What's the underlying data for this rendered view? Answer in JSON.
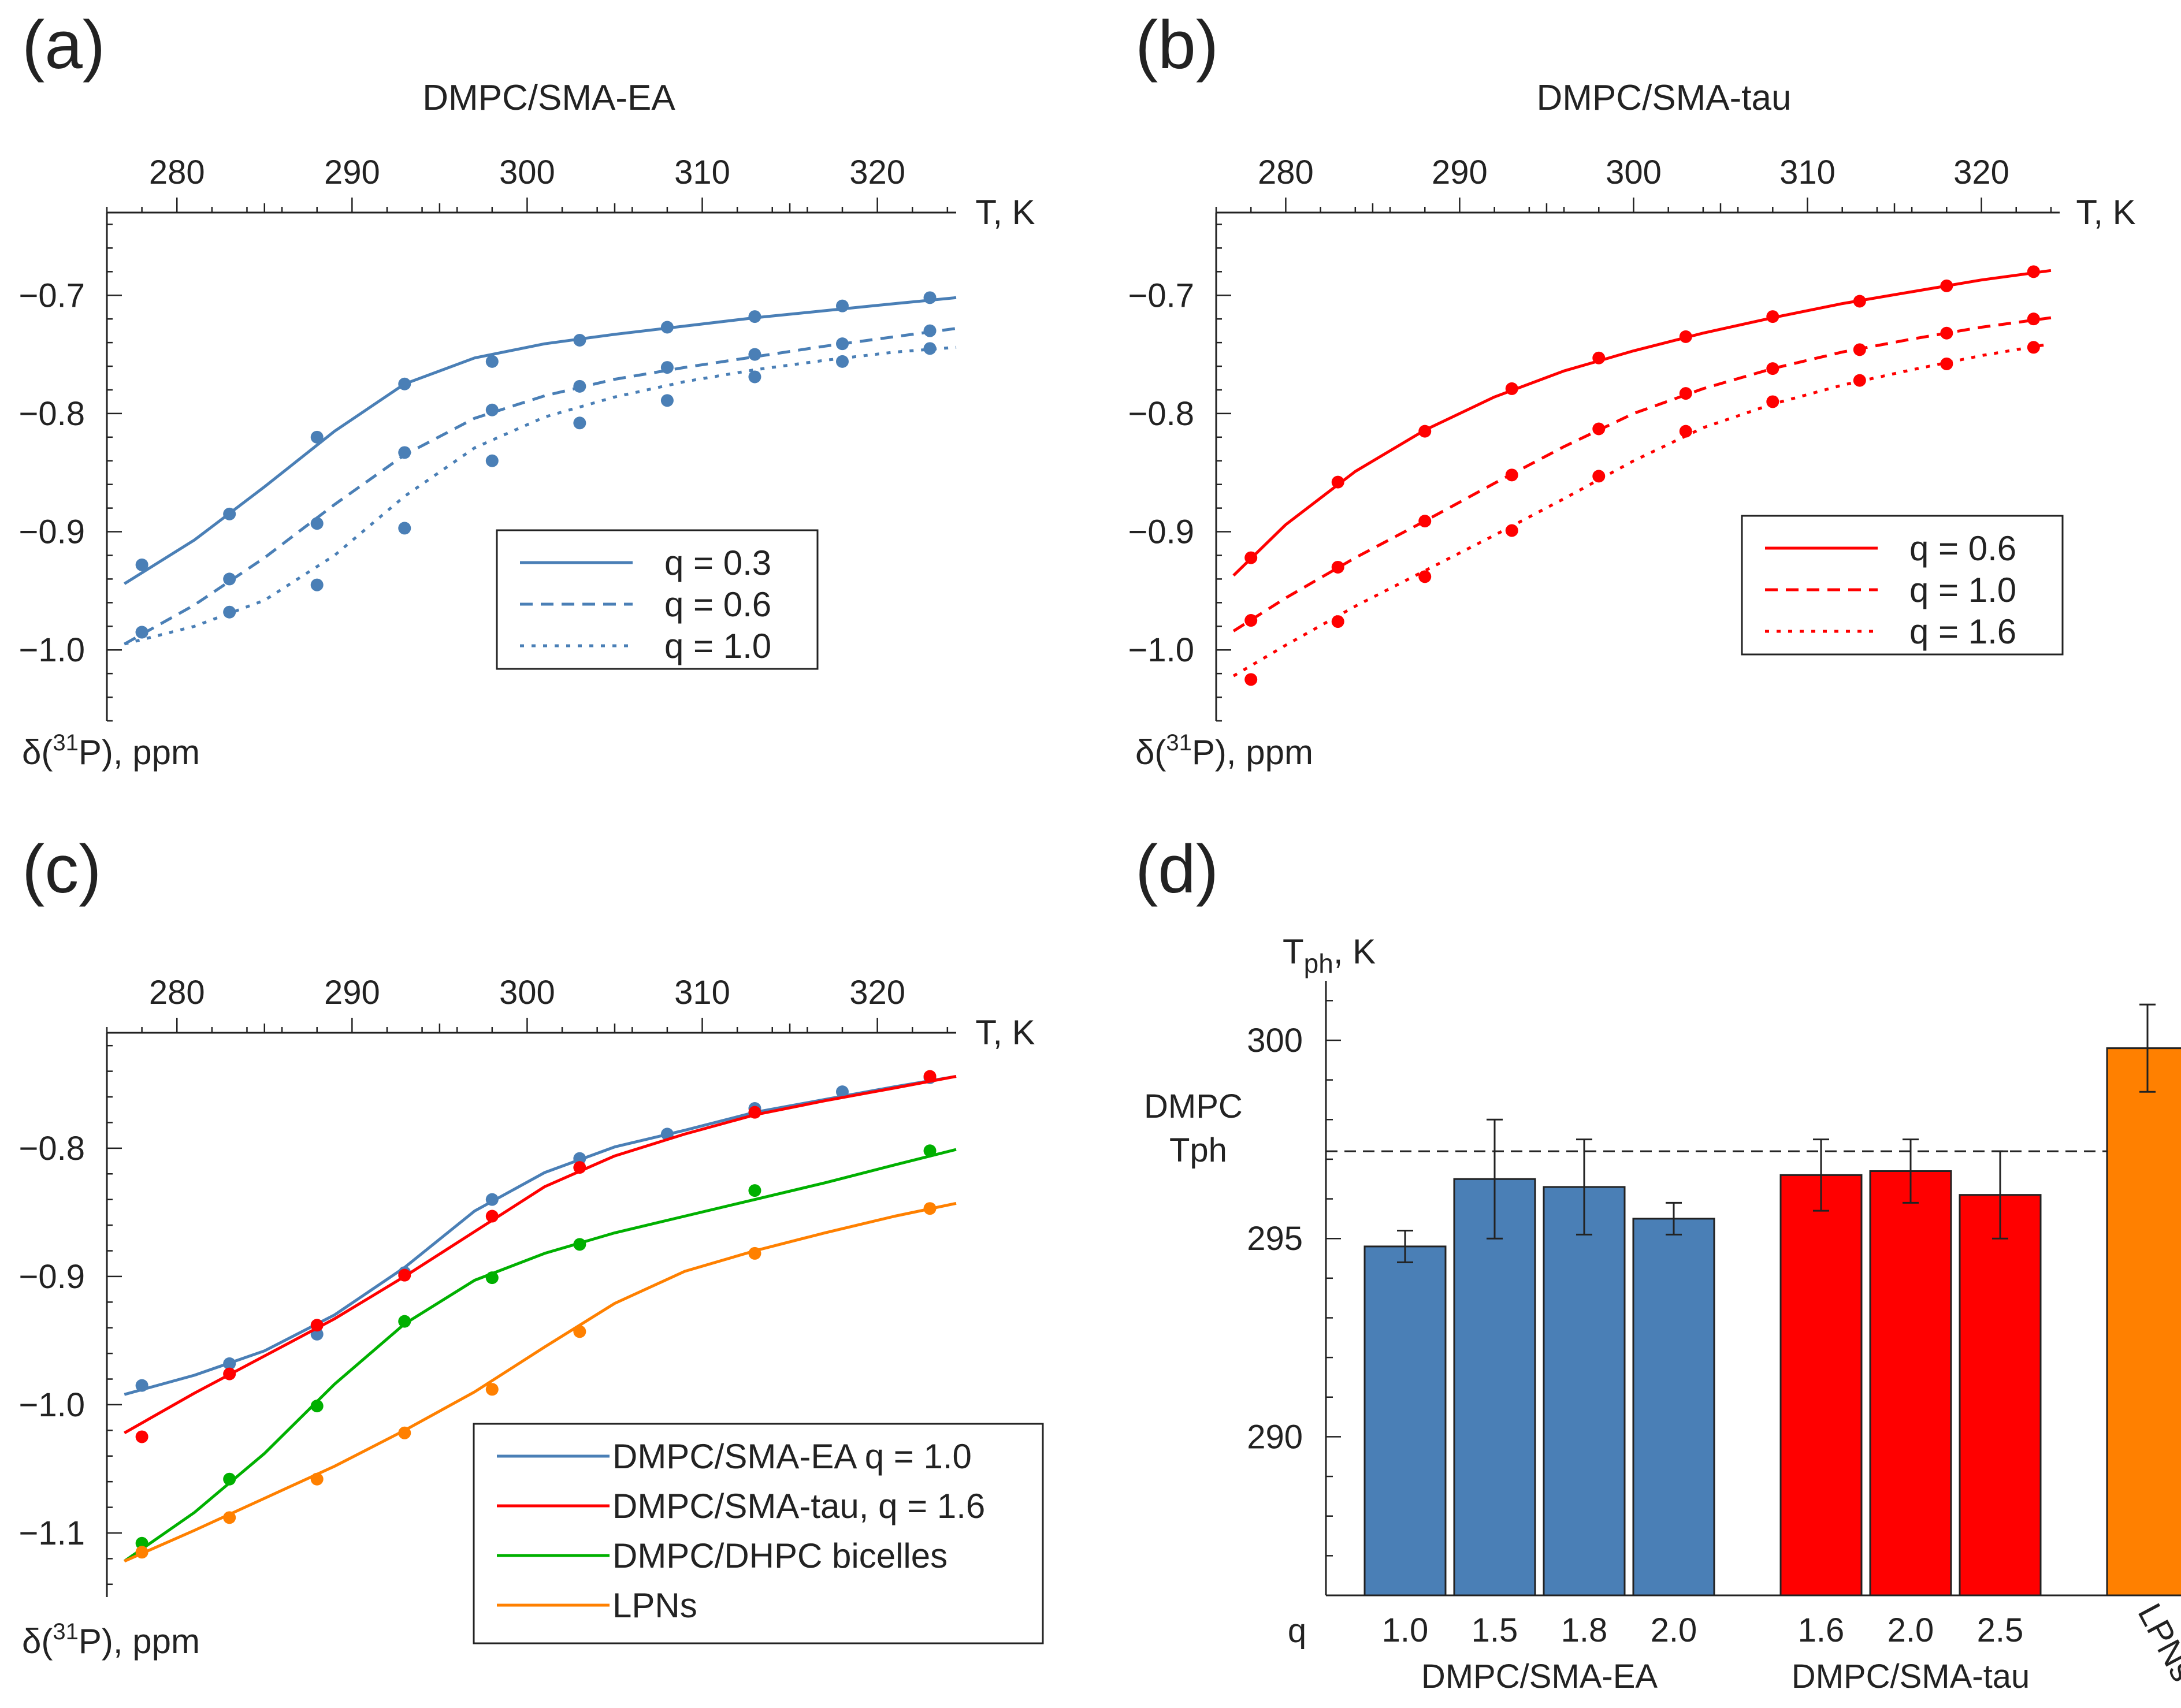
{
  "figure": {
    "colors": {
      "blue": "#4a7fb6",
      "red": "#ff0000",
      "green": "#00b000",
      "orange": "#ff8000",
      "axis": "#222222"
    }
  },
  "chart_data": [
    {
      "id": "a",
      "panel_label": "(a)",
      "type": "scatter",
      "title": "DMPC/SMA-EA",
      "xlabel": "T, K",
      "ylabel": "δ(31P), ppm",
      "ylabel_parts": {
        "pre": "δ(",
        "sup": "31",
        "post": "P), ppm"
      },
      "xlim": [
        276,
        324.5
      ],
      "ylim": [
        -1.06,
        -0.63
      ],
      "xticks": [
        280,
        290,
        300,
        310,
        320
      ],
      "xtick_labels": [
        "280",
        "290",
        "300",
        "310",
        "320"
      ],
      "yticks": [
        -1.0,
        -0.9,
        -0.8,
        -0.7
      ],
      "ytick_labels": [
        "−1.0",
        "−0.9",
        "−0.8",
        "−0.7"
      ],
      "legend_position": "center-right",
      "series": [
        {
          "name": "q = 0.3",
          "color": "#4a7fb6",
          "dash": "solid",
          "x": [
            278,
            283,
            288,
            293,
            298,
            303,
            308,
            313,
            318,
            323
          ],
          "y": [
            -0.928,
            -0.885,
            -0.82,
            -0.775,
            -0.756,
            -0.738,
            -0.727,
            -0.718,
            -0.709,
            -0.702
          ],
          "fit_x": [
            277,
            281,
            285,
            289,
            293,
            297,
            301,
            305,
            309,
            313,
            317,
            321,
            324.5
          ],
          "fit_y": [
            -0.944,
            -0.907,
            -0.862,
            -0.815,
            -0.775,
            -0.753,
            -0.741,
            -0.733,
            -0.726,
            -0.719,
            -0.713,
            -0.707,
            -0.702
          ]
        },
        {
          "name": "q = 0.6",
          "color": "#4a7fb6",
          "dash": "dashed",
          "x": [
            278,
            283,
            288,
            293,
            298,
            303,
            308,
            313,
            318,
            323
          ],
          "y": [
            -0.985,
            -0.94,
            -0.893,
            -0.833,
            -0.797,
            -0.777,
            -0.761,
            -0.75,
            -0.741,
            -0.73
          ],
          "fit_x": [
            277,
            281,
            285,
            289,
            293,
            297,
            301,
            305,
            309,
            313,
            317,
            321,
            324.5
          ],
          "fit_y": [
            -0.995,
            -0.962,
            -0.922,
            -0.877,
            -0.835,
            -0.804,
            -0.785,
            -0.771,
            -0.761,
            -0.752,
            -0.743,
            -0.735,
            -0.728
          ]
        },
        {
          "name": "q = 1.0",
          "color": "#4a7fb6",
          "dash": "dotted",
          "x": [
            278,
            283,
            288,
            293,
            298,
            303,
            308,
            313,
            318,
            323
          ],
          "y": [
            -0.985,
            -0.968,
            -0.945,
            -0.897,
            -0.84,
            -0.808,
            -0.789,
            -0.769,
            -0.756,
            -0.745
          ],
          "fit_x": [
            277,
            281,
            285,
            289,
            293,
            297,
            301,
            305,
            309,
            313,
            317,
            321,
            324.5
          ],
          "fit_y": [
            -0.995,
            -0.98,
            -0.958,
            -0.92,
            -0.87,
            -0.829,
            -0.803,
            -0.786,
            -0.773,
            -0.763,
            -0.755,
            -0.748,
            -0.744
          ]
        }
      ]
    },
    {
      "id": "b",
      "panel_label": "(b)",
      "type": "scatter",
      "title": "DMPC/SMA-tau",
      "xlabel": "T, K",
      "ylabel": "δ(31P), ppm",
      "ylabel_parts": {
        "pre": "δ(",
        "sup": "31",
        "post": "P), ppm"
      },
      "xlim": [
        276,
        324.5
      ],
      "ylim": [
        -1.06,
        -0.63
      ],
      "xticks": [
        280,
        290,
        300,
        310,
        320
      ],
      "xtick_labels": [
        "280",
        "290",
        "300",
        "310",
        "320"
      ],
      "yticks": [
        -1.0,
        -0.9,
        -0.8,
        -0.7
      ],
      "ytick_labels": [
        "−1.0",
        "−0.9",
        "−0.8",
        "−0.7"
      ],
      "legend_position": "center-right",
      "series": [
        {
          "name": "q = 0.6",
          "color": "#ff0000",
          "dash": "solid",
          "x": [
            278,
            283,
            288,
            293,
            298,
            303,
            308,
            313,
            318,
            323
          ],
          "y": [
            -0.922,
            -0.858,
            -0.815,
            -0.779,
            -0.753,
            -0.735,
            -0.718,
            -0.705,
            -0.692,
            -0.68
          ],
          "fit_x": [
            277,
            280,
            284,
            288,
            292,
            296,
            300,
            304,
            308,
            312,
            316,
            320,
            324
          ],
          "fit_y": [
            -0.937,
            -0.894,
            -0.849,
            -0.814,
            -0.786,
            -0.764,
            -0.747,
            -0.732,
            -0.719,
            -0.707,
            -0.697,
            -0.687,
            -0.679
          ]
        },
        {
          "name": "q = 1.0",
          "color": "#ff0000",
          "dash": "dashed",
          "x": [
            278,
            283,
            288,
            293,
            298,
            303,
            308,
            313,
            318,
            323
          ],
          "y": [
            -0.975,
            -0.93,
            -0.891,
            -0.852,
            -0.813,
            -0.783,
            -0.762,
            -0.746,
            -0.732,
            -0.72
          ],
          "fit_x": [
            277,
            280,
            284,
            288,
            292,
            296,
            300,
            304,
            308,
            312,
            316,
            320,
            324
          ],
          "fit_y": [
            -0.984,
            -0.956,
            -0.922,
            -0.891,
            -0.859,
            -0.828,
            -0.8,
            -0.779,
            -0.762,
            -0.748,
            -0.737,
            -0.727,
            -0.719
          ]
        },
        {
          "name": "q = 1.6",
          "color": "#ff0000",
          "dash": "dotted",
          "x": [
            278,
            283,
            288,
            293,
            298,
            303,
            308,
            313,
            318,
            323
          ],
          "y": [
            -1.025,
            -0.976,
            -0.938,
            -0.899,
            -0.853,
            -0.815,
            -0.79,
            -0.772,
            -0.758,
            -0.744
          ],
          "fit_x": [
            277,
            280,
            284,
            288,
            292,
            296,
            300,
            304,
            308,
            312,
            316,
            320,
            324
          ],
          "fit_y": [
            -1.022,
            -0.996,
            -0.963,
            -0.933,
            -0.903,
            -0.872,
            -0.84,
            -0.812,
            -0.792,
            -0.776,
            -0.763,
            -0.751,
            -0.741
          ]
        }
      ]
    },
    {
      "id": "c",
      "panel_label": "(c)",
      "type": "scatter",
      "title": "",
      "xlabel": "T, K",
      "ylabel": "δ(31P), ppm",
      "ylabel_parts": {
        "pre": "δ(",
        "sup": "31",
        "post": "P), ppm"
      },
      "xlim": [
        276,
        324.5
      ],
      "ylim": [
        -1.15,
        -0.71
      ],
      "xticks": [
        280,
        290,
        300,
        310,
        320
      ],
      "xtick_labels": [
        "280",
        "290",
        "300",
        "310",
        "320"
      ],
      "yticks": [
        -1.1,
        -1.0,
        -0.9,
        -0.8
      ],
      "ytick_labels": [
        "−1.1",
        "−1.0",
        "−0.9",
        "−0.8"
      ],
      "legend_position": "bottom-right",
      "series": [
        {
          "name": "DMPC/SMA-EA q = 1.0",
          "color": "#4a7fb6",
          "dash": "solid",
          "x": [
            278,
            283,
            288,
            293,
            298,
            303,
            308,
            313,
            318,
            323
          ],
          "y": [
            -0.985,
            -0.968,
            -0.945,
            -0.897,
            -0.84,
            -0.808,
            -0.789,
            -0.769,
            -0.756,
            -0.745
          ],
          "fit_x": [
            277,
            281,
            285,
            289,
            293,
            297,
            301,
            305,
            309,
            313,
            317,
            321,
            324.5
          ],
          "fit_y": [
            -0.992,
            -0.977,
            -0.958,
            -0.93,
            -0.893,
            -0.849,
            -0.819,
            -0.799,
            -0.786,
            -0.772,
            -0.762,
            -0.752,
            -0.744
          ]
        },
        {
          "name": "DMPC/SMA-tau, q = 1.6",
          "color": "#ff0000",
          "dash": "solid",
          "x": [
            278,
            283,
            288,
            293,
            298,
            303,
            313,
            323
          ],
          "y": [
            -1.025,
            -0.976,
            -0.938,
            -0.899,
            -0.853,
            -0.815,
            -0.772,
            -0.744
          ],
          "fit_x": [
            277,
            281,
            285,
            289,
            293,
            297,
            301,
            305,
            309,
            313,
            317,
            321,
            324.5
          ],
          "fit_y": [
            -1.022,
            -0.991,
            -0.962,
            -0.933,
            -0.9,
            -0.865,
            -0.83,
            -0.806,
            -0.789,
            -0.774,
            -0.763,
            -0.753,
            -0.744
          ]
        },
        {
          "name": "DMPC/DHPC bicelles",
          "color": "#00b000",
          "dash": "solid",
          "x": [
            278,
            283,
            288,
            293,
            298,
            303,
            313,
            323
          ],
          "y": [
            -1.108,
            -1.058,
            -1.001,
            -0.935,
            -0.901,
            -0.875,
            -0.833,
            -0.802
          ],
          "fit_x": [
            277,
            281,
            285,
            289,
            293,
            297,
            301,
            305,
            309,
            313,
            317,
            321,
            324.5
          ],
          "fit_y": [
            -1.122,
            -1.084,
            -1.038,
            -0.984,
            -0.937,
            -0.903,
            -0.882,
            -0.866,
            -0.853,
            -0.84,
            -0.827,
            -0.813,
            -0.801
          ]
        },
        {
          "name": "LPNs",
          "color": "#ff8000",
          "dash": "solid",
          "x": [
            278,
            283,
            288,
            293,
            298,
            303,
            313,
            323
          ],
          "y": [
            -1.115,
            -1.088,
            -1.058,
            -1.022,
            -0.988,
            -0.943,
            -0.882,
            -0.847
          ],
          "fit_x": [
            277,
            281,
            285,
            289,
            293,
            297,
            301,
            305,
            309,
            313,
            317,
            321,
            324.5
          ],
          "fit_y": [
            -1.122,
            -1.098,
            -1.073,
            -1.048,
            -1.02,
            -0.99,
            -0.955,
            -0.921,
            -0.896,
            -0.88,
            -0.866,
            -0.853,
            -0.843
          ]
        }
      ]
    },
    {
      "id": "d",
      "panel_label": "(d)",
      "type": "bar",
      "title": "",
      "ylabel": "Tph, K",
      "ylabel_parts": {
        "main": "T",
        "sub": "ph",
        "post": ", K"
      },
      "ylim": [
        286,
        301.5
      ],
      "yticks": [
        290,
        295,
        300
      ],
      "ytick_labels": [
        "290",
        "295",
        "300"
      ],
      "q_label": "q",
      "reference_line": {
        "value": 297.2,
        "label_line1": "DMPC",
        "label_line2": "Tph"
      },
      "groups": [
        {
          "name": "DMPC/SMA-EA",
          "bars": [
            {
              "category": "1.0",
              "value": 294.8,
              "err": 0.4,
              "color": "#4a7fb6"
            },
            {
              "category": "1.5",
              "value": 296.5,
              "err": 1.5,
              "color": "#4a7fb6"
            },
            {
              "category": "1.8",
              "value": 296.3,
              "err": 1.2,
              "color": "#4a7fb6"
            },
            {
              "category": "2.0",
              "value": 295.5,
              "err": 0.4,
              "color": "#4a7fb6"
            }
          ]
        },
        {
          "name": "DMPC/SMA-tau",
          "bars": [
            {
              "category": "1.6",
              "value": 296.6,
              "err": 0.9,
              "color": "#ff0000"
            },
            {
              "category": "2.0",
              "value": 296.7,
              "err": 0.8,
              "color": "#ff0000"
            },
            {
              "category": "2.5",
              "value": 296.1,
              "err": 1.1,
              "color": "#ff0000"
            }
          ]
        },
        {
          "name": "",
          "bars": [
            {
              "category": "LPNs",
              "value": 299.8,
              "err": 1.1,
              "color": "#ff8000",
              "rotated_label": true
            }
          ]
        }
      ]
    }
  ]
}
